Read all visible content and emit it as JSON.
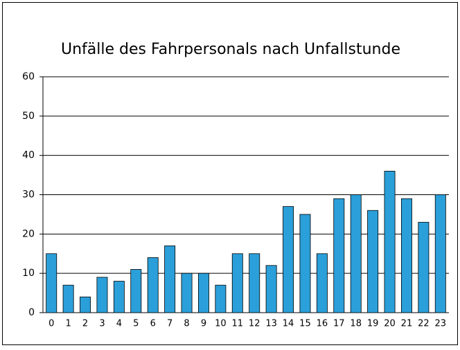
{
  "chart_data": {
    "type": "bar",
    "title": "Unfälle des Fahrpersonals nach Unfallstunde",
    "categories": [
      "0",
      "1",
      "2",
      "3",
      "4",
      "5",
      "6",
      "7",
      "8",
      "9",
      "10",
      "11",
      "12",
      "13",
      "14",
      "15",
      "16",
      "17",
      "18",
      "19",
      "20",
      "21",
      "22",
      "23"
    ],
    "values": [
      15,
      7,
      4,
      9,
      8,
      11,
      14,
      17,
      10,
      10,
      7,
      15,
      15,
      12,
      27,
      25,
      15,
      29,
      30,
      26,
      36,
      29,
      23,
      30
    ],
    "color": "#2b9fd9",
    "ylim": [
      0,
      60
    ],
    "yticks": [
      0,
      10,
      20,
      30,
      40,
      50,
      60
    ],
    "grid": true
  }
}
